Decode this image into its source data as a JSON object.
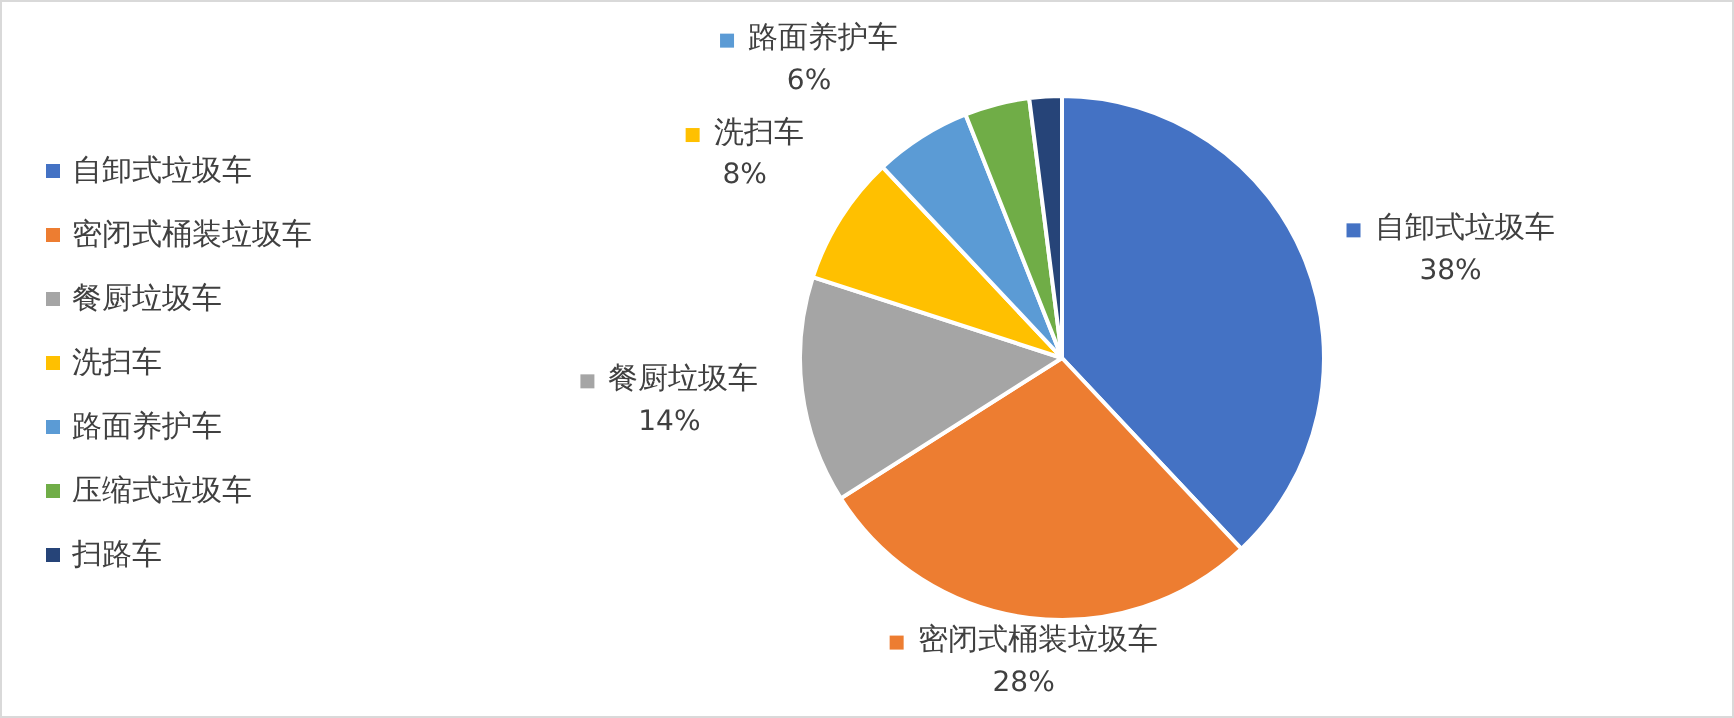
{
  "chart_data": {
    "type": "pie",
    "categories": [
      "自卸式垃圾车",
      "密闭式桶装垃圾车",
      "餐厨垃圾车",
      "洗扫车",
      "路面养护车",
      "压缩式垃圾车",
      "扫路车"
    ],
    "values": [
      38,
      28,
      14,
      8,
      6,
      4,
      2
    ],
    "colors": [
      "#4472c4",
      "#ed7d31",
      "#a5a5a5",
      "#ffc000",
      "#5b9bd5",
      "#70ad47",
      "#264478"
    ],
    "value_labels": [
      "38%",
      "28%",
      "14%",
      "8%",
      "6%",
      null,
      null
    ],
    "legend": "left"
  }
}
